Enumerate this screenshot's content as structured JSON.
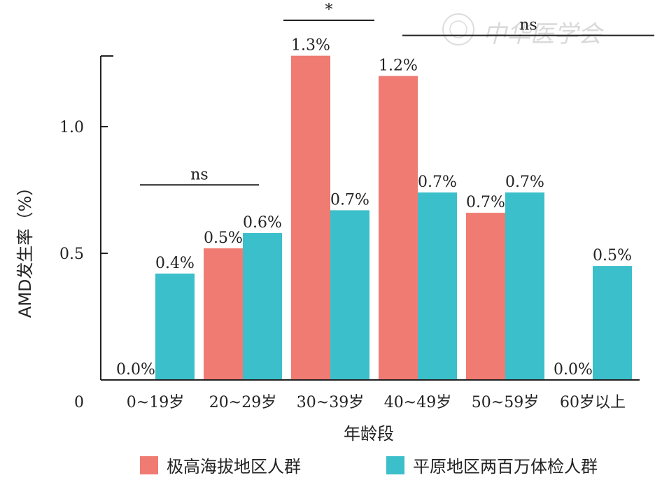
{
  "chart_data": {
    "type": "bar",
    "xlabel": "年龄段",
    "ylabel": "AMD发生率（%）",
    "ylim": [
      0,
      1.3
    ],
    "yticks": [
      {
        "value": 0,
        "label": "0"
      },
      {
        "value": 0.5,
        "label": "0.5"
      },
      {
        "value": 1.0,
        "label": "1.0"
      }
    ],
    "categories": [
      "0~19岁",
      "20~29岁",
      "30~39岁",
      "40~49岁",
      "50~59岁",
      "60岁以上"
    ],
    "series": [
      {
        "name": "极高海拔地区人群",
        "color": "#f07b72",
        "values": [
          0.0,
          0.52,
          1.28,
          1.2,
          0.66,
          0.0
        ],
        "labels": [
          "0.0%",
          "0.5%",
          "1.3%",
          "1.2%",
          "0.7%",
          "0.0%"
        ]
      },
      {
        "name": "平原地区两百万体检人群",
        "color": "#3bbfca",
        "values": [
          0.42,
          0.58,
          0.67,
          0.74,
          0.74,
          0.45
        ],
        "labels": [
          "0.4%",
          "0.6%",
          "0.7%",
          "0.7%",
          "0.7%",
          "0.5%"
        ]
      }
    ],
    "significance": [
      {
        "label": "ns",
        "from_category": 0,
        "to_category": 1,
        "level": 0.77
      },
      {
        "label": "*",
        "from_category": 2,
        "to_category": 2,
        "level": 1.42
      },
      {
        "label": "ns",
        "from_category": 3,
        "to_category": 5,
        "level": 1.36
      }
    ],
    "legend_position": "bottom",
    "grid": false
  },
  "watermark": {
    "text": "中华医学会"
  }
}
